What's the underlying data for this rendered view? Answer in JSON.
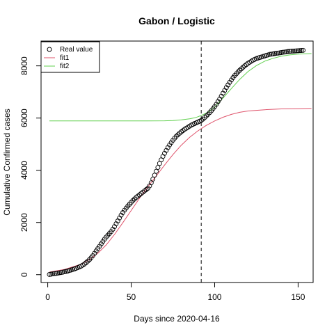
{
  "chart_data": {
    "type": "scatter",
    "title": "Gabon / Logistic",
    "xlabel": "Days since 2020-04-16",
    "ylabel": "Cumulative Confirmed cases",
    "xlim": [
      -4,
      159
    ],
    "ylim": [
      -300,
      8950
    ],
    "x_ticks": [
      0,
      50,
      100,
      150
    ],
    "y_ticks": [
      0,
      2000,
      4000,
      6000,
      8000
    ],
    "grid": false,
    "legend_position": "top-left",
    "vline": {
      "x": 92,
      "style": "dashed",
      "color": "#555555"
    },
    "series": [
      {
        "name": "Real value",
        "kind": "points",
        "marker": "open-circle",
        "color": "#000000",
        "x": [
          1,
          2,
          3,
          4,
          5,
          6,
          7,
          8,
          9,
          10,
          11,
          12,
          13,
          14,
          15,
          16,
          17,
          18,
          19,
          20,
          21,
          22,
          23,
          24,
          25,
          26,
          27,
          28,
          29,
          30,
          31,
          32,
          33,
          34,
          35,
          36,
          37,
          38,
          39,
          40,
          41,
          42,
          43,
          44,
          45,
          46,
          47,
          48,
          49,
          50,
          51,
          52,
          53,
          54,
          55,
          56,
          57,
          58,
          59,
          60,
          61,
          62,
          63,
          64,
          65,
          66,
          67,
          68,
          69,
          70,
          71,
          72,
          73,
          74,
          75,
          76,
          77,
          78,
          79,
          80,
          81,
          82,
          83,
          84,
          85,
          86,
          87,
          88,
          89,
          90,
          91,
          92,
          93,
          94,
          95,
          96,
          97,
          98,
          99,
          100,
          101,
          102,
          103,
          104,
          105,
          106,
          107,
          108,
          109,
          110,
          111,
          112,
          113,
          114,
          115,
          116,
          117,
          118,
          119,
          120,
          121,
          122,
          123,
          124,
          125,
          126,
          127,
          128,
          129,
          130,
          131,
          132,
          133,
          134,
          135,
          136,
          137,
          138,
          139,
          140,
          141,
          142,
          143,
          144,
          145,
          146,
          147,
          148,
          149,
          150,
          151,
          152,
          153
        ],
        "y": [
          10,
          20,
          30,
          40,
          50,
          60,
          70,
          80,
          95,
          110,
          125,
          140,
          160,
          180,
          200,
          220,
          245,
          270,
          300,
          330,
          370,
          410,
          460,
          520,
          580,
          650,
          730,
          820,
          910,
          1000,
          1090,
          1180,
          1270,
          1360,
          1440,
          1510,
          1580,
          1650,
          1740,
          1840,
          1950,
          2060,
          2170,
          2280,
          2380,
          2470,
          2550,
          2630,
          2700,
          2770,
          2840,
          2900,
          2960,
          3010,
          3060,
          3110,
          3160,
          3210,
          3260,
          3310,
          3400,
          3520,
          3660,
          3810,
          3960,
          4110,
          4260,
          4400,
          4530,
          4650,
          4760,
          4870,
          4970,
          5060,
          5150,
          5230,
          5300,
          5360,
          5420,
          5470,
          5520,
          5570,
          5610,
          5650,
          5690,
          5730,
          5760,
          5790,
          5820,
          5850,
          5880,
          5910,
          5960,
          6020,
          6080,
          6140,
          6210,
          6280,
          6360,
          6440,
          6530,
          6630,
          6730,
          6840,
          6950,
          7060,
          7170,
          7270,
          7370,
          7460,
          7550,
          7630,
          7700,
          7770,
          7830,
          7890,
          7950,
          8000,
          8050,
          8100,
          8140,
          8180,
          8220,
          8250,
          8280,
          8300,
          8320,
          8340,
          8360,
          8380,
          8400,
          8420,
          8440,
          8450,
          8460,
          8470,
          8480,
          8490,
          8500,
          8510,
          8520,
          8530,
          8540,
          8550,
          8555,
          8560,
          8565,
          8570,
          8575,
          8580,
          8585,
          8590,
          8595
        ]
      },
      {
        "name": "fit1",
        "kind": "line",
        "color": "#DF536B",
        "x": [
          1,
          10,
          20,
          25,
          30,
          35,
          40,
          45,
          50,
          55,
          60,
          65,
          70,
          75,
          80,
          85,
          90,
          95,
          100,
          105,
          110,
          115,
          120,
          130,
          140,
          150,
          158
        ],
        "y": [
          100,
          200,
          400,
          580,
          820,
          1140,
          1540,
          1990,
          2460,
          2930,
          3370,
          3780,
          4200,
          4600,
          4960,
          5260,
          5510,
          5720,
          5890,
          6030,
          6140,
          6220,
          6270,
          6320,
          6350,
          6360,
          6370
        ]
      },
      {
        "name": "fit2",
        "kind": "line",
        "color": "#61D04F",
        "x": [
          1,
          20,
          40,
          60,
          70,
          75,
          80,
          85,
          88,
          90,
          92,
          95,
          98,
          100,
          103,
          106,
          110,
          115,
          120,
          125,
          130,
          135,
          140,
          145,
          150,
          158
        ],
        "y": [
          5890,
          5890,
          5890,
          5890,
          5895,
          5905,
          5930,
          5970,
          6010,
          6050,
          6100,
          6190,
          6320,
          6420,
          6620,
          6840,
          7130,
          7480,
          7780,
          8010,
          8180,
          8290,
          8370,
          8420,
          8450,
          8470
        ]
      }
    ]
  }
}
